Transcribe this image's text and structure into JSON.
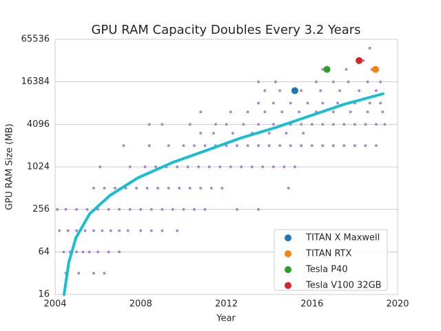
{
  "chart_data": {
    "type": "scatter",
    "title": "GPU RAM Capacity Doubles Every 3.2 Years",
    "x_label": "Year",
    "y_label": "GPU RAM Size (MB)",
    "xlim": [
      2004,
      2020
    ],
    "ylim": [
      16,
      65536
    ],
    "xticks": [
      2004,
      2008,
      2012,
      2016,
      2020
    ],
    "yticks": [
      16,
      64,
      256,
      1024,
      4096,
      16384,
      65536
    ],
    "yscale": "log",
    "grid": true,
    "legend": "lower right",
    "background_points": {
      "color": "#9467bd",
      "x": [
        2004.5,
        2005.1,
        2005.8,
        2006.3,
        2004.4,
        2004.7,
        2005.0,
        2005.3,
        2005.6,
        2006.0,
        2006.5,
        2007.0,
        2004.2,
        2004.6,
        2005.0,
        2005.4,
        2005.8,
        2006.2,
        2006.6,
        2007.0,
        2007.4,
        2008.0,
        2008.5,
        2009.0,
        2009.7,
        2004.1,
        2004.5,
        2005.0,
        2005.5,
        2006.0,
        2006.5,
        2007.0,
        2007.5,
        2008.0,
        2008.5,
        2009.0,
        2009.5,
        2010.0,
        2010.5,
        2011.0,
        2012.5,
        2013.5,
        2005.8,
        2006.3,
        2006.8,
        2007.3,
        2007.8,
        2008.3,
        2008.8,
        2009.3,
        2009.8,
        2010.3,
        2010.8,
        2011.3,
        2011.8,
        2014.9,
        2006.1,
        2007.5,
        2008.2,
        2008.7,
        2009.2,
        2009.7,
        2010.2,
        2010.7,
        2011.2,
        2011.7,
        2012.2,
        2012.7,
        2013.2,
        2013.7,
        2014.2,
        2014.7,
        2015.2,
        2007.2,
        2008.4,
        2009.3,
        2010.0,
        2010.5,
        2011.0,
        2011.5,
        2012.0,
        2012.5,
        2013.0,
        2013.5,
        2014.0,
        2014.5,
        2015.0,
        2015.5,
        2016.0,
        2016.5,
        2017.0,
        2017.5,
        2018.0,
        2018.5,
        2019.0,
        2010.8,
        2011.4,
        2012.3,
        2013.2,
        2014.0,
        2014.8,
        2015.6,
        2008.4,
        2009.0,
        2010.3,
        2011.5,
        2012.0,
        2012.8,
        2013.5,
        2014.2,
        2015.0,
        2015.5,
        2016.0,
        2016.5,
        2017.0,
        2017.5,
        2018.0,
        2018.5,
        2019.0,
        2019.4,
        2010.8,
        2012.2,
        2013.0,
        2013.8,
        2014.6,
        2015.4,
        2016.2,
        2017.0,
        2017.8,
        2018.6,
        2019.3,
        2013.5,
        2014.2,
        2015.0,
        2015.8,
        2016.5,
        2017.2,
        2018.0,
        2018.7,
        2019.2,
        2013.8,
        2014.5,
        2015.5,
        2016.4,
        2017.3,
        2018.2,
        2019.0,
        2013.5,
        2014.3,
        2016.2,
        2017.0,
        2017.7,
        2018.6,
        2019.2,
        2016.5,
        2017.6,
        2018.8,
        2018.4,
        2018.7
      ],
      "y": [
        32,
        32,
        32,
        32,
        64,
        64,
        64,
        64,
        64,
        64,
        64,
        64,
        128,
        128,
        128,
        128,
        128,
        128,
        128,
        128,
        128,
        128,
        128,
        128,
        128,
        256,
        256,
        256,
        256,
        256,
        256,
        256,
        256,
        256,
        256,
        256,
        256,
        256,
        256,
        256,
        256,
        256,
        512,
        512,
        512,
        512,
        512,
        512,
        512,
        512,
        512,
        512,
        512,
        512,
        512,
        512,
        1024,
        1024,
        1024,
        1024,
        1024,
        1024,
        1024,
        1024,
        1024,
        1024,
        1024,
        1024,
        1024,
        1024,
        1024,
        1024,
        1024,
        2048,
        2048,
        2048,
        2048,
        2048,
        2048,
        2048,
        2048,
        2048,
        2048,
        2048,
        2048,
        2048,
        2048,
        2048,
        2048,
        2048,
        2048,
        2048,
        2048,
        2048,
        2048,
        3072,
        3072,
        3072,
        3072,
        3072,
        3072,
        3072,
        4096,
        4096,
        4096,
        4096,
        4096,
        4096,
        4096,
        4096,
        4096,
        4096,
        4096,
        4096,
        4096,
        4096,
        4096,
        4096,
        4096,
        4096,
        6144,
        6144,
        6144,
        6144,
        6144,
        6144,
        6144,
        6144,
        6144,
        6144,
        6144,
        8192,
        8192,
        8192,
        8192,
        8192,
        8192,
        8192,
        8192,
        8192,
        12288,
        12288,
        12288,
        12288,
        12288,
        12288,
        12288,
        16384,
        16384,
        16384,
        16384,
        16384,
        16384,
        16384,
        24576,
        24576,
        24576,
        32768,
        49152
      ]
    },
    "trend_line": {
      "color": "#17becf",
      "x": [
        2004.42,
        2004.64,
        2004.97,
        2005.61,
        2006.58,
        2007.86,
        2009.47,
        2011.08,
        2012.69,
        2014.3,
        2015.91,
        2017.52,
        2019.32
      ],
      "y": [
        16,
        46,
        101,
        221,
        407,
        714,
        1176,
        1758,
        2630,
        3690,
        5400,
        7900,
        11100
      ]
    },
    "series": [
      {
        "name": "TITAN X Maxwell",
        "color": "#1f77b4",
        "x": [
          2015.2
        ],
        "values": [
          12288
        ]
      },
      {
        "name": "TITAN RTX",
        "color": "#ff7f0e",
        "x": [
          2018.97
        ],
        "values": [
          24576
        ]
      },
      {
        "name": "Tesla P40",
        "color": "#2ca02c",
        "x": [
          2016.7
        ],
        "values": [
          24576
        ]
      },
      {
        "name": "Tesla V100 32GB",
        "color": "#d62728",
        "x": [
          2018.2
        ],
        "values": [
          32768
        ]
      }
    ]
  }
}
